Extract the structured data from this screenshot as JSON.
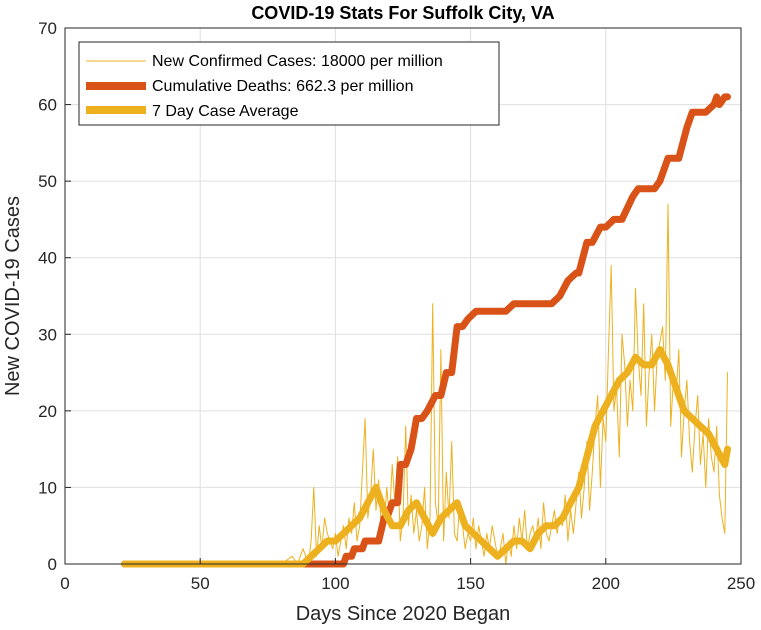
{
  "chart_data": {
    "type": "line",
    "title": "COVID-19 Stats For Suffolk City, VA",
    "xlabel": "Days Since 2020 Began",
    "ylabel": "New COVID-19 Cases",
    "xlim": [
      0,
      250
    ],
    "ylim": [
      0,
      70
    ],
    "xticks": [
      "0",
      "50",
      "100",
      "150",
      "200",
      "250"
    ],
    "yticks": [
      "0",
      "10",
      "20",
      "30",
      "40",
      "50",
      "60",
      "70"
    ],
    "grid": true,
    "legend_position": "top-left",
    "series": [
      {
        "name": "New Confirmed Cases: 18000 per million",
        "style": "thin",
        "color": "#EDB120",
        "x": [
          22,
          80,
          84,
          86,
          88,
          90,
          91,
          92,
          93,
          94,
          95,
          96,
          97,
          98,
          99,
          100,
          101,
          102,
          103,
          104,
          105,
          106,
          107,
          108,
          109,
          110,
          111,
          112,
          113,
          114,
          115,
          116,
          117,
          118,
          119,
          120,
          121,
          122,
          123,
          124,
          125,
          126,
          127,
          128,
          129,
          130,
          131,
          132,
          133,
          134,
          135,
          136,
          137,
          138,
          139,
          140,
          141,
          142,
          143,
          144,
          145,
          146,
          147,
          148,
          149,
          150,
          151,
          152,
          153,
          154,
          155,
          156,
          157,
          158,
          159,
          160,
          161,
          162,
          163,
          164,
          165,
          166,
          167,
          168,
          169,
          170,
          171,
          172,
          173,
          174,
          175,
          176,
          177,
          178,
          179,
          180,
          181,
          182,
          183,
          184,
          185,
          186,
          187,
          188,
          189,
          190,
          191,
          192,
          193,
          194,
          195,
          196,
          197,
          198,
          199,
          200,
          201,
          202,
          203,
          204,
          205,
          206,
          207,
          208,
          209,
          210,
          211,
          212,
          213,
          214,
          215,
          216,
          217,
          218,
          219,
          220,
          221,
          222,
          223,
          224,
          225,
          226,
          227,
          228,
          229,
          230,
          231,
          232,
          233,
          234,
          235,
          236,
          237,
          238,
          239,
          240,
          241,
          242,
          243,
          244,
          245
        ],
        "values": [
          0,
          0,
          1,
          0,
          2,
          0,
          3,
          10,
          1,
          5,
          2,
          6,
          4,
          3,
          2,
          4,
          1,
          3,
          5,
          2,
          6,
          4,
          8,
          3,
          5,
          12,
          19,
          6,
          9,
          15,
          7,
          11,
          4,
          5,
          10,
          6,
          13,
          8,
          14,
          3,
          6,
          18,
          5,
          9,
          4,
          7,
          3,
          5,
          10,
          2,
          6,
          34,
          8,
          5,
          28,
          3,
          12,
          6,
          16,
          4,
          3,
          8,
          5,
          2,
          4,
          3,
          6,
          2,
          5,
          3,
          1,
          4,
          2,
          5,
          3,
          1,
          2,
          4,
          0,
          3,
          1,
          5,
          2,
          6,
          3,
          7,
          2,
          4,
          5,
          3,
          6,
          2,
          8,
          4,
          3,
          5,
          7,
          4,
          6,
          5,
          9,
          3,
          7,
          4,
          8,
          12,
          6,
          10,
          16,
          7,
          12,
          18,
          22,
          10,
          19,
          16,
          28,
          39,
          20,
          23,
          14,
          30,
          26,
          18,
          24,
          20,
          36,
          27,
          22,
          34,
          18,
          25,
          30,
          20,
          27,
          29,
          31,
          24,
          47,
          18,
          24,
          22,
          28,
          14,
          20,
          24,
          16,
          12,
          18,
          22,
          13,
          17,
          10,
          19,
          14,
          12,
          18,
          9,
          6,
          4,
          25
        ]
      },
      {
        "name": "Cumulative Deaths: 662.3 per million",
        "style": "thick",
        "color": "#D95319",
        "x": [
          22,
          103,
          104,
          106,
          107,
          110,
          111,
          113,
          116,
          118,
          119,
          121,
          123,
          124,
          126,
          128,
          130,
          132,
          134,
          137,
          139,
          141,
          143,
          145,
          147,
          149,
          152,
          155,
          157,
          163,
          166,
          170,
          175,
          180,
          183,
          186,
          189,
          190,
          193,
          195,
          198,
          200,
          203,
          206,
          210,
          212,
          218,
          220,
          223,
          227,
          230,
          232,
          237,
          240,
          241,
          242,
          244,
          245
        ],
        "values": [
          0,
          0,
          1,
          1,
          2,
          2,
          3,
          3,
          3,
          6,
          6,
          8,
          8,
          13,
          13,
          15,
          19,
          19,
          20,
          22,
          22,
          25,
          25,
          31,
          31,
          32,
          33,
          33,
          33,
          33,
          34,
          34,
          34,
          34,
          35,
          37,
          38,
          38,
          42,
          42,
          44,
          44,
          45,
          45,
          48,
          49,
          49,
          50,
          53,
          53,
          57,
          59,
          59,
          60,
          61,
          60,
          61,
          61
        ]
      },
      {
        "name": "7 Day Case Average",
        "style": "thick",
        "color": "#EDB120",
        "x": [
          22,
          85,
          88,
          91,
          94,
          97,
          100,
          103,
          106,
          109,
          112,
          115,
          118,
          121,
          124,
          127,
          130,
          133,
          136,
          139,
          142,
          145,
          148,
          151,
          154,
          157,
          160,
          163,
          166,
          169,
          172,
          175,
          178,
          181,
          184,
          187,
          190,
          193,
          196,
          199,
          202,
          205,
          208,
          211,
          214,
          217,
          220,
          223,
          226,
          229,
          232,
          235,
          238,
          241,
          244,
          245
        ],
        "values": [
          0,
          0,
          0,
          1,
          2,
          3,
          3,
          4,
          5,
          6,
          8,
          10,
          7,
          5,
          5,
          7,
          8,
          6,
          4,
          6,
          7,
          8,
          5,
          4,
          3,
          2,
          1,
          2,
          3,
          3,
          2,
          4,
          5,
          5,
          6,
          8,
          10,
          14,
          18,
          20,
          22,
          24,
          25,
          27,
          26,
          26,
          28,
          26,
          23,
          20,
          19,
          18,
          17,
          15,
          13,
          15
        ]
      }
    ]
  }
}
